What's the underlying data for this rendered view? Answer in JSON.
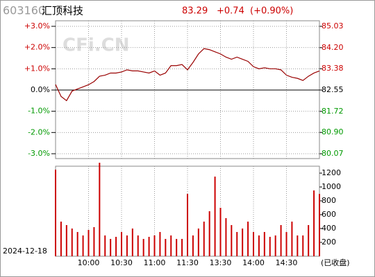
{
  "chart_data": [
    {
      "type": "line",
      "code": "603160",
      "name": "汇顶科技",
      "last": "83.29",
      "change": "+0.74",
      "change_pct": "(+0.90%)",
      "watermark": "CFi.CN",
      "x": [
        "09:30",
        "09:35",
        "09:40",
        "09:45",
        "09:50",
        "09:55",
        "10:00",
        "10:05",
        "10:10",
        "10:15",
        "10:20",
        "10:25",
        "10:30",
        "10:35",
        "10:40",
        "10:45",
        "10:50",
        "10:55",
        "11:00",
        "11:05",
        "11:10",
        "11:15",
        "11:20",
        "11:25",
        "11:30",
        "13:05",
        "13:10",
        "13:15",
        "13:20",
        "13:25",
        "13:30",
        "13:35",
        "13:40",
        "13:45",
        "13:50",
        "13:55",
        "14:00",
        "14:05",
        "14:10",
        "14:15",
        "14:20",
        "14:25",
        "14:30",
        "14:35",
        "14:40",
        "14:45",
        "14:50",
        "14:55",
        "15:00"
      ],
      "values": [
        0.26,
        -0.3,
        -0.5,
        -0.05,
        0.05,
        0.15,
        0.25,
        0.4,
        0.65,
        0.7,
        0.8,
        0.8,
        0.85,
        0.95,
        0.9,
        0.9,
        0.85,
        0.8,
        0.9,
        0.7,
        0.8,
        1.15,
        1.15,
        1.2,
        0.95,
        1.3,
        1.7,
        1.95,
        1.9,
        1.8,
        1.7,
        1.55,
        1.45,
        1.55,
        1.45,
        1.35,
        1.1,
        1.0,
        1.05,
        1.0,
        1.0,
        0.95,
        0.7,
        0.6,
        0.55,
        0.45,
        0.65,
        0.8,
        0.9
      ],
      "color": "#990000",
      "ylim": [
        -3,
        3
      ],
      "yticks": [
        {
          "value": 3,
          "label": "+3.0%"
        },
        {
          "value": 2,
          "label": "+2.0%"
        },
        {
          "value": 1,
          "label": "+1.0%"
        },
        {
          "value": 0,
          "label": "0.0%"
        },
        {
          "value": -1,
          "label": "-1.0%"
        },
        {
          "value": -2,
          "label": "-2.0%"
        },
        {
          "value": -3,
          "label": "-3.0%"
        }
      ],
      "y2lim": [
        80.07,
        85.03
      ],
      "y2ticks": [
        85.03,
        {
          "value": 84.2,
          "label": "84.20"
        },
        83.38,
        82.55,
        81.72,
        {
          "value": 80.9,
          "label": "80.90"
        },
        80.07
      ],
      "grid": true
    },
    {
      "type": "bar",
      "date": "2024-12-18",
      "status": "(已收盘)",
      "x": [
        "09:30",
        "09:35",
        "09:40",
        "09:45",
        "09:50",
        "09:55",
        "10:00",
        "10:05",
        "10:10",
        "10:15",
        "10:20",
        "10:25",
        "10:30",
        "10:35",
        "10:40",
        "10:45",
        "10:50",
        "10:55",
        "11:00",
        "11:05",
        "11:10",
        "11:15",
        "11:20",
        "11:25",
        "11:30",
        "13:05",
        "13:10",
        "13:15",
        "13:20",
        "13:25",
        "13:30",
        "13:35",
        "13:40",
        "13:45",
        "13:50",
        "13:55",
        "14:00",
        "14:05",
        "14:10",
        "14:15",
        "14:20",
        "14:25",
        "14:30",
        "14:35",
        "14:40",
        "14:45",
        "14:50",
        "14:55",
        "15:00"
      ],
      "values": [
        1250,
        500,
        450,
        400,
        350,
        300,
        380,
        420,
        1350,
        300,
        250,
        280,
        350,
        300,
        400,
        300,
        250,
        280,
        300,
        350,
        250,
        300,
        250,
        250,
        900,
        300,
        400,
        500,
        650,
        1150,
        700,
        550,
        450,
        350,
        400,
        500,
        350,
        300,
        350,
        280,
        300,
        450,
        350,
        500,
        300,
        300,
        450,
        950,
        900
      ],
      "color": "#cc0000",
      "ylim": [
        0,
        1300
      ],
      "yticks": [
        200,
        400,
        600,
        800,
        1000,
        1200
      ],
      "xticks": [
        "10:00",
        "10:30",
        "11:00",
        "11:30",
        "13:30",
        "14:00",
        "14:30"
      ],
      "grid": true
    }
  ]
}
